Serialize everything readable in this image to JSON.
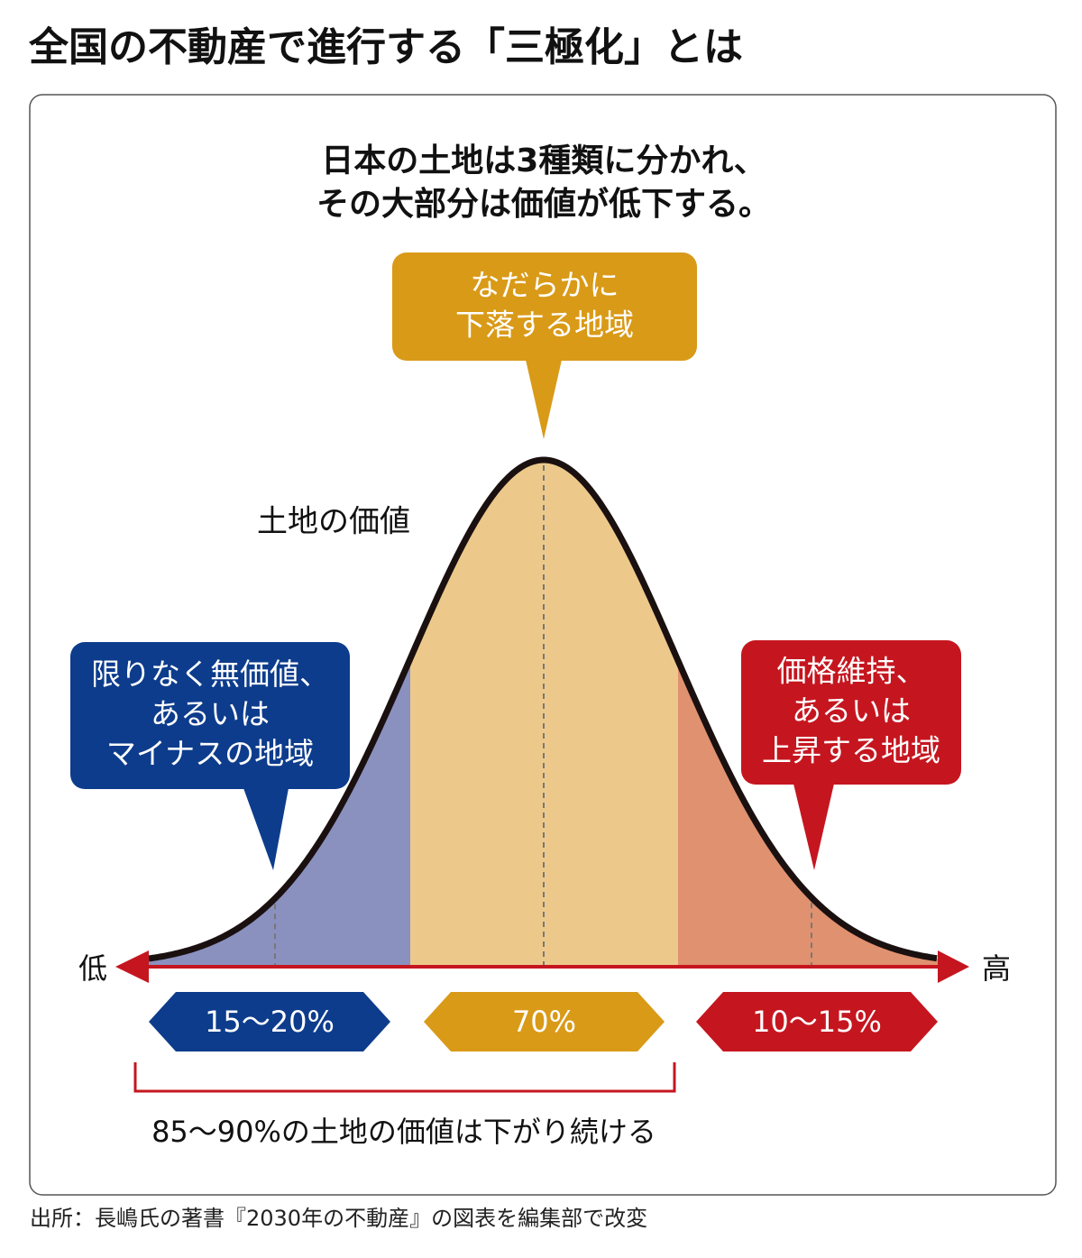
{
  "title": "全国の不動産で進行する「三極化」とは",
  "subtitle": [
    "日本の土地は3種類に分かれ、",
    "その大部分は価値が低下する。"
  ],
  "curve_label": "土地の価値",
  "axis": {
    "low": "低",
    "high": "高"
  },
  "segments": [
    {
      "callout": [
        "限りなく無価値、",
        "あるいは",
        "マイナスの地域"
      ],
      "label": "15〜20%",
      "color": "#0d3c8c",
      "area_color": "#8a91bf"
    },
    {
      "callout": [
        "なだらかに",
        "下落する地域"
      ],
      "label": "70%",
      "color": "#d99a18",
      "area_color": "#ecc98b"
    },
    {
      "callout": [
        "価格維持、",
        "あるいは",
        "上昇する地域"
      ],
      "label": "10〜15%",
      "color": "#c5161f",
      "area_color": "#e0916f"
    }
  ],
  "bracket_label": "85〜90%の土地の価値は下がり続ける",
  "source": "出所：長嶋氏の著書『2030年の不動産』の図表を編集部で改変"
}
